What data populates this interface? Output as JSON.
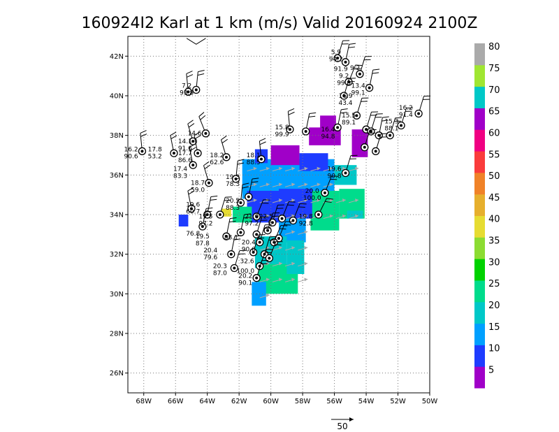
{
  "title": "160924I2 Karl at 1 km (m/s) Valid 20160924  2100Z",
  "map": {
    "lon_range": [
      -69,
      -50
    ],
    "lat_range": [
      25,
      43
    ],
    "lon_ticks": [
      -68,
      -66,
      -64,
      -62,
      -60,
      -58,
      -56,
      -54,
      -52,
      -50
    ],
    "lat_ticks": [
      26,
      28,
      30,
      32,
      34,
      36,
      38,
      40,
      42
    ],
    "lon_labels": [
      "68W",
      "66W",
      "64W",
      "62W",
      "60W",
      "58W",
      "56W",
      "54W",
      "52W",
      "50W"
    ],
    "lat_labels": [
      "26N",
      "28N",
      "30N",
      "32N",
      "34N",
      "36N",
      "38N",
      "40N",
      "42N"
    ],
    "grid": true
  },
  "colorbar": {
    "labels": [
      "5",
      "10",
      "15",
      "20",
      "25",
      "30",
      "35",
      "40",
      "45",
      "50",
      "55",
      "60",
      "65",
      "70",
      "75",
      "80"
    ],
    "colors": [
      "#a000c8",
      "#1e3cff",
      "#00a0ff",
      "#00c8c8",
      "#00dc8c",
      "#00d200",
      "#8cdc32",
      "#e6dc32",
      "#e6af2d",
      "#f08228",
      "#fa3c3c",
      "#f00082",
      "#a000c8",
      "#00c8c8",
      "#a0e632",
      "#aaaaaa"
    ]
  },
  "reference_vector": {
    "label": "50"
  },
  "colors": {
    "wind_arrow": "#aaaaaa",
    "station": "#000000"
  },
  "obs_labels": [
    {
      "lon": -55.9,
      "lat": 42.1,
      "speed": "5.9",
      "dir": "94.2"
    },
    {
      "lon": -55.6,
      "lat": 41.6,
      "speed": "",
      "dir": "91.9"
    },
    {
      "lon": -54.7,
      "lat": 41.3,
      "speed": "9.2",
      "dir": ""
    },
    {
      "lon": -55.4,
      "lat": 40.9,
      "speed": "9.2",
      "dir": "99.9"
    },
    {
      "lon": -54.5,
      "lat": 40.4,
      "speed": "13.4",
      "dir": "99.1"
    },
    {
      "lon": -65.3,
      "lat": 40.4,
      "speed": "7.2",
      "dir": "93.8"
    },
    {
      "lon": -55.3,
      "lat": 39.9,
      "speed": "16.9",
      "dir": "43.4"
    },
    {
      "lon": -51.5,
      "lat": 39.3,
      "speed": "16.2",
      "dir": "91.4"
    },
    {
      "lon": -55.1,
      "lat": 38.9,
      "speed": "15.5",
      "dir": "89.1"
    },
    {
      "lon": -52.4,
      "lat": 38.6,
      "speed": "15.3",
      "dir": "88.1"
    },
    {
      "lon": -59.3,
      "lat": 38.3,
      "speed": "15.8",
      "dir": "99.9"
    },
    {
      "lon": -56.4,
      "lat": 38.2,
      "speed": "16.4",
      "dir": "94.8"
    },
    {
      "lon": -64.8,
      "lat": 38.0,
      "speed": "14.6",
      "dir": ""
    },
    {
      "lon": -65.4,
      "lat": 37.6,
      "speed": "14.1",
      "dir": "91.6"
    },
    {
      "lon": -67.3,
      "lat": 37.2,
      "speed": "17.8",
      "dir": "53.2"
    },
    {
      "lon": -68.8,
      "lat": 37.2,
      "speed": "16.2",
      "dir": "90.6"
    },
    {
      "lon": -65.4,
      "lat": 37.0,
      "speed": "17.7",
      "dir": "86.6"
    },
    {
      "lon": -63.4,
      "lat": 36.9,
      "speed": "18.2",
      "dir": "62.6"
    },
    {
      "lon": -61.1,
      "lat": 36.9,
      "speed": "18.1",
      "dir": "88.5"
    },
    {
      "lon": -65.7,
      "lat": 36.2,
      "speed": "17.4",
      "dir": "83.3"
    },
    {
      "lon": -56.0,
      "lat": 36.2,
      "speed": "19.6",
      "dir": "90.8"
    },
    {
      "lon": -62.4,
      "lat": 35.8,
      "speed": "19.3",
      "dir": "78.3"
    },
    {
      "lon": -64.6,
      "lat": 35.5,
      "speed": "18.7",
      "dir": "59.0"
    },
    {
      "lon": -57.4,
      "lat": 35.1,
      "speed": "20.0",
      "dir": "100.0"
    },
    {
      "lon": -62.4,
      "lat": 34.6,
      "speed": "20.5",
      "dir": "88.3"
    },
    {
      "lon": -64.9,
      "lat": 34.4,
      "speed": "19.6",
      "dir": "60.7"
    },
    {
      "lon": -57.8,
      "lat": 33.8,
      "speed": "19.8",
      "dir": "92.8"
    },
    {
      "lon": -64.1,
      "lat": 33.8,
      "speed": "19.5",
      "dir": "97.2"
    },
    {
      "lon": -61.2,
      "lat": 33.8,
      "speed": "21.0",
      "dir": "97.2"
    },
    {
      "lon": -60.3,
      "lat": 33.8,
      "speed": "22.5",
      "dir": ""
    },
    {
      "lon": -64.9,
      "lat": 33.3,
      "speed": "",
      "dir": "76.8"
    },
    {
      "lon": -62.5,
      "lat": 33.1,
      "speed": "",
      "dir": "88.1"
    },
    {
      "lon": -64.3,
      "lat": 32.8,
      "speed": "19.5",
      "dir": "87.8"
    },
    {
      "lon": -61.4,
      "lat": 32.5,
      "speed": "20.4",
      "dir": "90.6"
    },
    {
      "lon": -63.8,
      "lat": 32.1,
      "speed": "20.4",
      "dir": "79.6"
    },
    {
      "lon": -61.5,
      "lat": 31.9,
      "speed": "",
      "dir": "32.6"
    },
    {
      "lon": -63.2,
      "lat": 31.3,
      "speed": "20.3",
      "dir": "87.0"
    },
    {
      "lon": -61.6,
      "lat": 31.4,
      "speed": "",
      "dir": "100.0"
    },
    {
      "lon": -61.6,
      "lat": 30.8,
      "speed": "20.2",
      "dir": "90.1"
    }
  ],
  "stations": [
    {
      "lon": -55.8,
      "lat": 41.9,
      "u": 0.3,
      "v": 1.0
    },
    {
      "lon": -55.3,
      "lat": 41.7,
      "u": 0.2,
      "v": 1.0
    },
    {
      "lon": -54.4,
      "lat": 41.1,
      "u": 0.3,
      "v": 1.0
    },
    {
      "lon": -55.1,
      "lat": 40.7,
      "u": 0.4,
      "v": 1.0
    },
    {
      "lon": -53.8,
      "lat": 40.4,
      "u": 0.2,
      "v": 1.0
    },
    {
      "lon": -55.4,
      "lat": 40.0,
      "u": 0.3,
      "v": 1.0
    },
    {
      "lon": -64.7,
      "lat": 40.3,
      "u": 0.1,
      "v": 1.0
    },
    {
      "lon": -65.2,
      "lat": 40.2,
      "u": -0.1,
      "v": 1.0
    },
    {
      "lon": -50.7,
      "lat": 39.1,
      "u": 0.3,
      "v": 1.0
    },
    {
      "lon": -54.6,
      "lat": 39.0,
      "u": 0.3,
      "v": 1.0
    },
    {
      "lon": -51.8,
      "lat": 38.5,
      "u": 0.3,
      "v": 1.0
    },
    {
      "lon": -55.8,
      "lat": 38.4,
      "u": 0.2,
      "v": 1.0
    },
    {
      "lon": -58.8,
      "lat": 38.3,
      "u": -0.1,
      "v": 1.0
    },
    {
      "lon": -54.0,
      "lat": 38.3,
      "u": 0.3,
      "v": 1.0
    },
    {
      "lon": -53.7,
      "lat": 38.2,
      "u": 0.3,
      "v": 1.0
    },
    {
      "lon": -57.8,
      "lat": 38.2,
      "u": 0.2,
      "v": 1.0
    },
    {
      "lon": -52.5,
      "lat": 38.0,
      "u": 0.3,
      "v": 1.0
    },
    {
      "lon": -53.2,
      "lat": 38.0,
      "u": 0.2,
      "v": 1.0
    },
    {
      "lon": -64.1,
      "lat": 38.1,
      "u": -0.4,
      "v": 1.0
    },
    {
      "lon": -64.9,
      "lat": 37.7,
      "u": -0.3,
      "v": 1.0
    },
    {
      "lon": -54.1,
      "lat": 37.4,
      "u": 0.3,
      "v": 1.0
    },
    {
      "lon": -53.4,
      "lat": 37.2,
      "u": 0.3,
      "v": 1.0
    },
    {
      "lon": -66.1,
      "lat": 37.1,
      "u": -0.2,
      "v": 1.0
    },
    {
      "lon": -68.1,
      "lat": 37.2,
      "u": -0.1,
      "v": 1.0
    },
    {
      "lon": -64.6,
      "lat": 37.1,
      "u": -0.2,
      "v": 1.0
    },
    {
      "lon": -62.8,
      "lat": 36.9,
      "u": -0.3,
      "v": 1.0
    },
    {
      "lon": -60.6,
      "lat": 36.8,
      "u": -0.1,
      "v": 1.0
    },
    {
      "lon": -64.9,
      "lat": 36.5,
      "u": -0.2,
      "v": 1.0
    },
    {
      "lon": -55.3,
      "lat": 36.1,
      "u": 0.3,
      "v": 1.0
    },
    {
      "lon": -62.2,
      "lat": 35.8,
      "u": 0.1,
      "v": 1.0
    },
    {
      "lon": -63.9,
      "lat": 35.6,
      "u": -0.3,
      "v": 1.0
    },
    {
      "lon": -56.6,
      "lat": 35.1,
      "u": 0.4,
      "v": 1.0
    },
    {
      "lon": -61.4,
      "lat": 34.9,
      "u": 0.2,
      "v": 1.0
    },
    {
      "lon": -61.9,
      "lat": 34.6,
      "u": 0.1,
      "v": 1.0
    },
    {
      "lon": -65.0,
      "lat": 34.3,
      "u": -0.2,
      "v": 1.0
    },
    {
      "lon": -57.0,
      "lat": 34.0,
      "u": 0.5,
      "v": 1.0
    },
    {
      "lon": -64.0,
      "lat": 34.0,
      "u": 0.2,
      "v": 1.0
    },
    {
      "lon": -63.2,
      "lat": 34.0,
      "u": 0.3,
      "v": 1.0
    },
    {
      "lon": -60.9,
      "lat": 33.9,
      "u": 0.4,
      "v": 1.0
    },
    {
      "lon": -59.3,
      "lat": 33.8,
      "u": 0.4,
      "v": 1.0
    },
    {
      "lon": -58.6,
      "lat": 33.7,
      "u": 0.4,
      "v": 1.0
    },
    {
      "lon": -59.9,
      "lat": 33.6,
      "u": 0.3,
      "v": 1.0
    },
    {
      "lon": -64.3,
      "lat": 33.4,
      "u": 0.2,
      "v": 1.0
    },
    {
      "lon": -60.2,
      "lat": 33.2,
      "u": 0.3,
      "v": 1.0
    },
    {
      "lon": -61.9,
      "lat": 33.1,
      "u": 0.2,
      "v": 1.0
    },
    {
      "lon": -60.9,
      "lat": 33.0,
      "u": 0.3,
      "v": 1.0
    },
    {
      "lon": -62.8,
      "lat": 32.9,
      "u": 0.2,
      "v": 1.0
    },
    {
      "lon": -59.5,
      "lat": 32.8,
      "u": 0.4,
      "v": 1.0
    },
    {
      "lon": -60.7,
      "lat": 32.6,
      "u": 0.3,
      "v": 1.0
    },
    {
      "lon": -59.8,
      "lat": 32.6,
      "u": 0.4,
      "v": 1.0
    },
    {
      "lon": -61.1,
      "lat": 32.1,
      "u": 0.3,
      "v": 1.0
    },
    {
      "lon": -60.4,
      "lat": 32.0,
      "u": 0.3,
      "v": 1.0
    },
    {
      "lon": -62.5,
      "lat": 32.0,
      "u": 0.2,
      "v": 1.0
    },
    {
      "lon": -60.1,
      "lat": 31.8,
      "u": 0.4,
      "v": 1.0
    },
    {
      "lon": -62.3,
      "lat": 31.3,
      "u": 0.3,
      "v": 1.0
    },
    {
      "lon": -60.7,
      "lat": 31.4,
      "u": 0.4,
      "v": 1.0
    },
    {
      "lon": -60.9,
      "lat": 30.8,
      "u": 0.3,
      "v": 1.0
    }
  ]
}
